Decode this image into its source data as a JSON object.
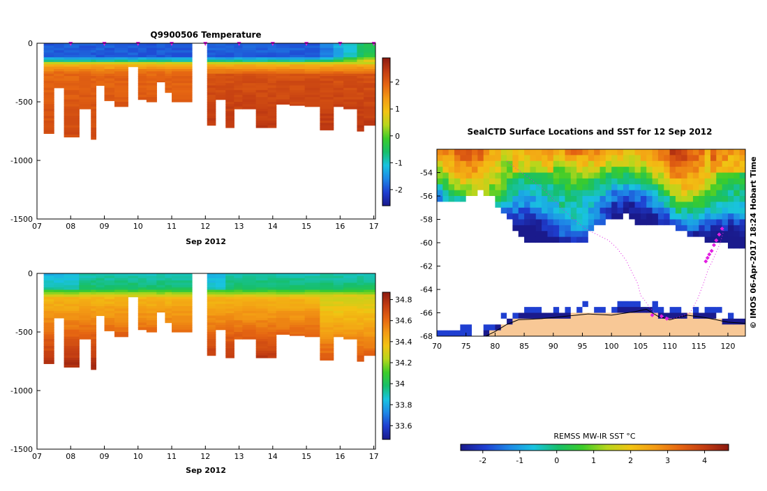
{
  "colormap": [
    "#1a1a8c",
    "#1f3fd1",
    "#1e88e6",
    "#19c3e0",
    "#17bf6a",
    "#3ccc2a",
    "#b7d61c",
    "#f2c313",
    "#f39a14",
    "#e56512",
    "#c33d12",
    "#8c1a10"
  ],
  "land_color": "#f8c896",
  "track_color": "#e21ee2",
  "chart_data": [
    {
      "id": "temperature",
      "type": "heatmap",
      "title": "Q9900506  Temperature",
      "xlabel": "Sep 2012",
      "x_ticks": [
        "07",
        "08",
        "09",
        "10",
        "11",
        "12",
        "13",
        "14",
        "15",
        "16",
        "17"
      ],
      "xlim": [
        7,
        17.05
      ],
      "y_ticks": [
        "0",
        "-500",
        "-1000",
        "-1500"
      ],
      "ylim": [
        -1500,
        0
      ],
      "colorbar_ticks": [
        "2",
        "1",
        "0",
        "-1",
        "-2"
      ],
      "colorbar_values": [
        2,
        1,
        0,
        -1,
        -2
      ],
      "colorbar_range": [
        -2.6,
        2.9
      ],
      "gap": [
        11.6,
        12.05
      ],
      "profile_times": [
        8.0,
        9.0,
        10.0,
        11.0,
        12.0,
        13.0,
        14.0,
        15.0,
        16.0,
        17.0
      ],
      "profiles": [
        {
          "t0": 7.2,
          "t1": 7.5,
          "depth": 770
        },
        {
          "t0": 7.5,
          "t1": 7.8,
          "depth": 380
        },
        {
          "t0": 7.8,
          "t1": 8.25,
          "depth": 800
        },
        {
          "t0": 8.25,
          "t1": 8.6,
          "depth": 560
        },
        {
          "t0": 8.6,
          "t1": 8.75,
          "depth": 820
        },
        {
          "t0": 8.75,
          "t1": 9.0,
          "depth": 360
        },
        {
          "t0": 9.0,
          "t1": 9.3,
          "depth": 490
        },
        {
          "t0": 9.3,
          "t1": 9.7,
          "depth": 540
        },
        {
          "t0": 9.7,
          "t1": 10.0,
          "depth": 200
        },
        {
          "t0": 10.0,
          "t1": 10.25,
          "depth": 480
        },
        {
          "t0": 10.25,
          "t1": 10.55,
          "depth": 500
        },
        {
          "t0": 10.55,
          "t1": 10.8,
          "depth": 330
        },
        {
          "t0": 10.8,
          "t1": 11.0,
          "depth": 420
        },
        {
          "t0": 11.0,
          "t1": 11.6,
          "depth": 500
        },
        {
          "t0": 12.05,
          "t1": 12.3,
          "depth": 700
        },
        {
          "t0": 12.3,
          "t1": 12.6,
          "depth": 480
        },
        {
          "t0": 12.6,
          "t1": 12.85,
          "depth": 720
        },
        {
          "t0": 12.85,
          "t1": 13.1,
          "depth": 560
        },
        {
          "t0": 13.1,
          "t1": 13.5,
          "depth": 560
        },
        {
          "t0": 13.5,
          "t1": 13.85,
          "depth": 720
        },
        {
          "t0": 13.85,
          "t1": 14.1,
          "depth": 720
        },
        {
          "t0": 14.1,
          "t1": 14.5,
          "depth": 520
        },
        {
          "t0": 14.5,
          "t1": 14.95,
          "depth": 530
        },
        {
          "t0": 14.95,
          "t1": 15.4,
          "depth": 540
        },
        {
          "t0": 15.4,
          "t1": 15.8,
          "depth": 740
        },
        {
          "t0": 15.8,
          "t1": 16.1,
          "depth": 540
        },
        {
          "t0": 16.1,
          "t1": 16.5,
          "depth": 560
        },
        {
          "t0": 16.5,
          "t1": 16.7,
          "depth": 750
        },
        {
          "t0": 16.7,
          "t1": 17.05,
          "depth": 700
        }
      ]
    },
    {
      "id": "salinity",
      "type": "heatmap",
      "title": "",
      "xlabel": "Sep 2012",
      "x_ticks": [
        "07",
        "08",
        "09",
        "10",
        "11",
        "12",
        "13",
        "14",
        "15",
        "16",
        "17"
      ],
      "xlim": [
        7,
        17.05
      ],
      "y_ticks": [
        "0",
        "-500",
        "-1000",
        "-1500"
      ],
      "ylim": [
        -1500,
        0
      ],
      "colorbar_ticks": [
        "34.8",
        "34.6",
        "34.4",
        "34.2",
        "34",
        "33.8",
        "33.6"
      ],
      "colorbar_values": [
        34.8,
        34.6,
        34.4,
        34.2,
        34.0,
        33.8,
        33.6
      ],
      "colorbar_range": [
        33.47,
        34.87
      ],
      "gap": [
        11.6,
        12.05
      ]
    },
    {
      "id": "sst_map",
      "type": "heatmap",
      "title": "SealCTD Surface Locations and SST for 12 Sep 2012",
      "x_ticks": [
        "70",
        "75",
        "80",
        "85",
        "90",
        "95",
        "100",
        "105",
        "110",
        "115",
        "120"
      ],
      "xlim": [
        70,
        123
      ],
      "y_ticks": [
        "-54",
        "-56",
        "-58",
        "-60",
        "-62",
        "-64",
        "-66",
        "-68"
      ],
      "ylim": [
        -68,
        -52
      ],
      "colorbar_label": "REMSS MW-IR SST °C",
      "colorbar_ticks": [
        "-2",
        "-1",
        "0",
        "1",
        "2",
        "3",
        "4"
      ],
      "colorbar_values": [
        -2,
        -1,
        0,
        1,
        2,
        3,
        4
      ],
      "colorbar_range": [
        -2.6,
        4.65
      ],
      "track_lon": [
        82.0,
        84.0,
        86.0,
        88.5,
        91.0,
        93.5,
        95.5,
        97.5,
        99.5,
        101.0,
        102.5,
        103.5,
        104.5,
        105.0,
        105.8,
        106.5,
        107.5,
        108.5,
        109.5,
        110.5,
        112.0,
        113.5,
        114.8,
        115.8,
        116.6,
        117.3,
        118.0,
        118.7,
        119.3
      ],
      "track_lat": [
        -53.0,
        -53.8,
        -54.5,
        -55.5,
        -56.8,
        -58.0,
        -58.8,
        -59.3,
        -59.8,
        -60.5,
        -61.5,
        -62.5,
        -63.5,
        -64.5,
        -65.0,
        -65.5,
        -66.0,
        -66.2,
        -66.4,
        -66.5,
        -66.3,
        -66.0,
        -64.8,
        -63.5,
        -62.3,
        -61.6,
        -60.8,
        -60.0,
        -58.9
      ],
      "markers_lon": [
        107.0,
        108.6,
        109.5,
        116.2,
        116.5,
        116.8,
        117.2,
        117.6,
        118.0,
        118.5,
        119.0
      ],
      "markers_lat": [
        -66.2,
        -66.3,
        -66.5,
        -61.6,
        -61.3,
        -61.0,
        -60.7,
        -60.2,
        -59.8,
        -59.3,
        -58.8
      ]
    }
  ],
  "map_credit": "© IMOS 06-Apr-2017 18:24 Hobart Time"
}
